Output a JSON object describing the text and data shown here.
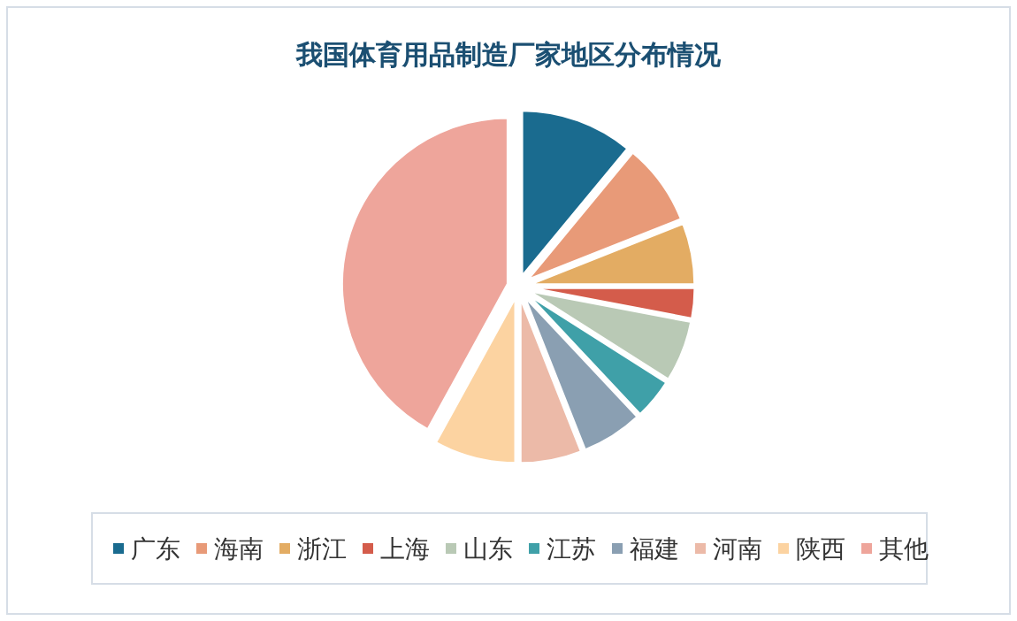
{
  "chart_data": {
    "type": "pie",
    "title": "我国体育用品制造厂家地区分布情况",
    "categories": [
      "广东",
      "海南",
      "浙江",
      "上海",
      "山东",
      "江苏",
      "福建",
      "河南",
      "陕西",
      "其他"
    ],
    "values": [
      11,
      8,
      6,
      3,
      6,
      4,
      6,
      6,
      8,
      42
    ],
    "colors": [
      "#1a6b8f",
      "#e89a78",
      "#e3ac63",
      "#d45c4b",
      "#b9c9b5",
      "#3fa0a8",
      "#8a9fb2",
      "#ecbaa8",
      "#fcd3a1",
      "#eea59b"
    ],
    "legend": "bottom"
  }
}
